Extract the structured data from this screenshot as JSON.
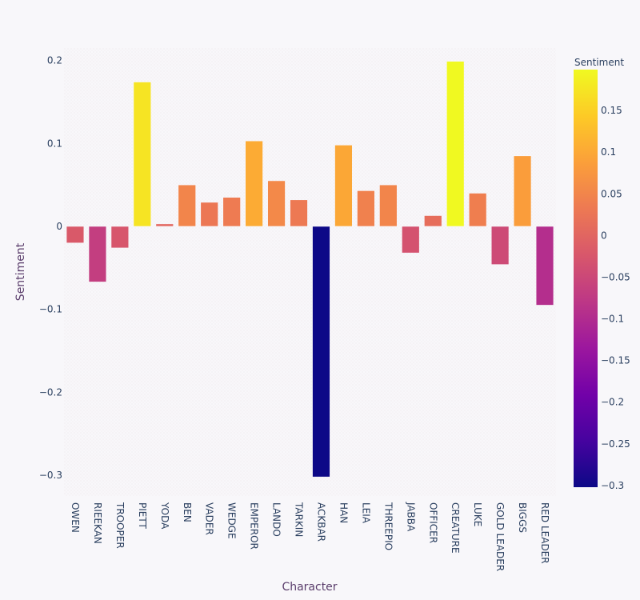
{
  "chart_data": {
    "type": "bar",
    "xlabel": "Character",
    "ylabel": "Sentiment",
    "ylim": [
      -0.325,
      0.215
    ],
    "yticks": [
      -0.3,
      -0.2,
      -0.1,
      0,
      0.1,
      0.2
    ],
    "ytick_labels": [
      "−0.3",
      "−0.2",
      "−0.1",
      "0",
      "0.1",
      "0.2"
    ],
    "categories": [
      "OWEN",
      "RIEEKAN",
      "TROOPER",
      "PIETT",
      "YODA",
      "BEN",
      "VADER",
      "WEDGE",
      "EMPEROR",
      "LANDO",
      "TARKIN",
      "ACKBAR",
      "HAN",
      "LEIA",
      "THREEPIO",
      "JABBA",
      "OFFICER",
      "CREATURE",
      "LUKE",
      "GOLD LEADER",
      "BIGGS",
      "RED LEADER"
    ],
    "values": [
      -0.02,
      -0.067,
      -0.026,
      0.174,
      0.003,
      0.05,
      0.029,
      0.035,
      0.103,
      0.055,
      0.032,
      -0.302,
      0.098,
      0.043,
      0.05,
      -0.032,
      0.013,
      0.199,
      0.04,
      -0.046,
      0.085,
      -0.095
    ],
    "colorbar": {
      "title": "Sentiment",
      "min": -0.302,
      "max": 0.199,
      "ticks": [
        -0.3,
        -0.25,
        -0.2,
        -0.15,
        -0.1,
        -0.05,
        0,
        0.05,
        0.1,
        0.15
      ],
      "tick_labels": [
        "−0.3",
        "−0.25",
        "−0.2",
        "−0.15",
        "−0.1",
        "−0.05",
        "0",
        "0.05",
        "0.1",
        "0.15"
      ]
    },
    "colorscale": [
      "#0d0887",
      "#46039f",
      "#7201a8",
      "#9c179e",
      "#bd3786",
      "#d8576b",
      "#ed7953",
      "#fb9f3a",
      "#fdca26",
      "#f0f921"
    ],
    "plot_background": "#f8f7fa",
    "grid": false
  }
}
